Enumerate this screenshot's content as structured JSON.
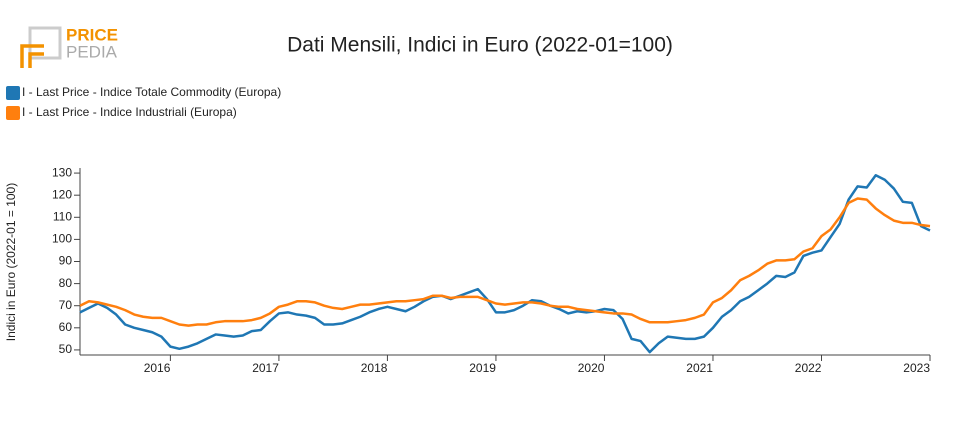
{
  "logo": {
    "line1": "PRICE",
    "line2": "PEDIA"
  },
  "chart_data": {
    "type": "line",
    "title": "Dati Mensili, Indici in Euro (2022-01=100)",
    "y_label": "Indici in Euro (2022-01 = 100)",
    "xlim": [
      2015.167,
      2023
    ],
    "xticks": [
      2016,
      2017,
      2018,
      2019,
      2020,
      2021,
      2022,
      2023
    ],
    "ylim": [
      47.7,
      132.3
    ],
    "yticks": [
      50,
      60,
      70,
      80,
      90,
      100,
      110,
      120,
      130
    ],
    "x": [
      2015.167,
      2015.25,
      2015.333,
      2015.417,
      2015.5,
      2015.583,
      2015.667,
      2015.75,
      2015.833,
      2015.917,
      2016,
      2016.083,
      2016.167,
      2016.25,
      2016.333,
      2016.417,
      2016.5,
      2016.583,
      2016.667,
      2016.75,
      2016.833,
      2016.917,
      2017,
      2017.083,
      2017.167,
      2017.25,
      2017.333,
      2017.417,
      2017.5,
      2017.583,
      2017.667,
      2017.75,
      2017.833,
      2017.917,
      2018,
      2018.083,
      2018.167,
      2018.25,
      2018.333,
      2018.417,
      2018.5,
      2018.583,
      2018.667,
      2018.75,
      2018.833,
      2018.917,
      2019,
      2019.083,
      2019.167,
      2019.25,
      2019.333,
      2019.417,
      2019.5,
      2019.583,
      2019.667,
      2019.75,
      2019.833,
      2019.917,
      2020,
      2020.083,
      2020.167,
      2020.25,
      2020.333,
      2020.417,
      2020.5,
      2020.583,
      2020.667,
      2020.75,
      2020.833,
      2020.917,
      2021,
      2021.083,
      2021.167,
      2021.25,
      2021.333,
      2021.417,
      2021.5,
      2021.583,
      2021.667,
      2021.75,
      2021.833,
      2021.917,
      2022,
      2022.083,
      2022.167,
      2022.25,
      2022.333,
      2022.417,
      2022.5,
      2022.583,
      2022.667,
      2022.75,
      2022.833,
      2022.917,
      2023
    ],
    "series": [
      {
        "name": "I - Last Price - Indice Totale Commodity (Europa)",
        "color": "#1f77b4",
        "values": [
          67,
          69,
          71,
          69,
          66,
          61.5,
          60,
          59,
          58,
          56,
          51.5,
          50.5,
          51.5,
          53,
          55,
          57,
          56.5,
          56,
          56.5,
          58.5,
          59,
          63,
          66.5,
          67,
          66,
          65.5,
          64.5,
          61.5,
          61.5,
          62,
          63.5,
          65,
          67,
          68.5,
          69.5,
          68.5,
          67.5,
          69.5,
          72,
          74,
          74.5,
          73,
          74.5,
          76,
          77.5,
          73,
          67,
          67,
          68,
          70,
          72.5,
          72,
          70,
          68.5,
          66.5,
          67.5,
          67,
          67.5,
          68.5,
          68,
          64,
          55,
          54,
          49,
          53,
          56,
          55.5,
          55,
          55,
          56,
          60,
          65,
          68,
          72,
          74,
          77,
          80,
          83.5,
          83,
          85,
          92.5,
          94,
          95,
          101,
          107,
          118,
          124,
          123.5,
          129,
          127,
          123,
          117,
          116.5,
          106,
          104
        ]
      },
      {
        "name": "I - Last Price - Indice Industriali (Europa)",
        "color": "#ff7f0e",
        "values": [
          70,
          72,
          71.5,
          70.5,
          69.5,
          68,
          66,
          65,
          64.5,
          64.5,
          63,
          61.5,
          61,
          61.5,
          61.5,
          62.5,
          63,
          63,
          63,
          63.5,
          64.5,
          66.5,
          69.5,
          70.5,
          72,
          72,
          71.5,
          70,
          69,
          68.5,
          69.5,
          70.5,
          70.5,
          71,
          71.5,
          72,
          72,
          72.5,
          73,
          74.5,
          74.5,
          73.5,
          74,
          74,
          74,
          72.5,
          71,
          70.5,
          71,
          71.5,
          71.5,
          71,
          70,
          69.5,
          69.5,
          68.5,
          68,
          67.5,
          67,
          66.5,
          66.5,
          66,
          64,
          62.5,
          62.5,
          62.5,
          63,
          63.5,
          64.5,
          66,
          71.5,
          73.5,
          77,
          81.5,
          83.5,
          86,
          89,
          90.5,
          90.5,
          91,
          94.5,
          96,
          101.5,
          104.5,
          110,
          116.5,
          118.5,
          118,
          114,
          111,
          108.5,
          107.5,
          107.5,
          106.5,
          106
        ]
      }
    ]
  }
}
